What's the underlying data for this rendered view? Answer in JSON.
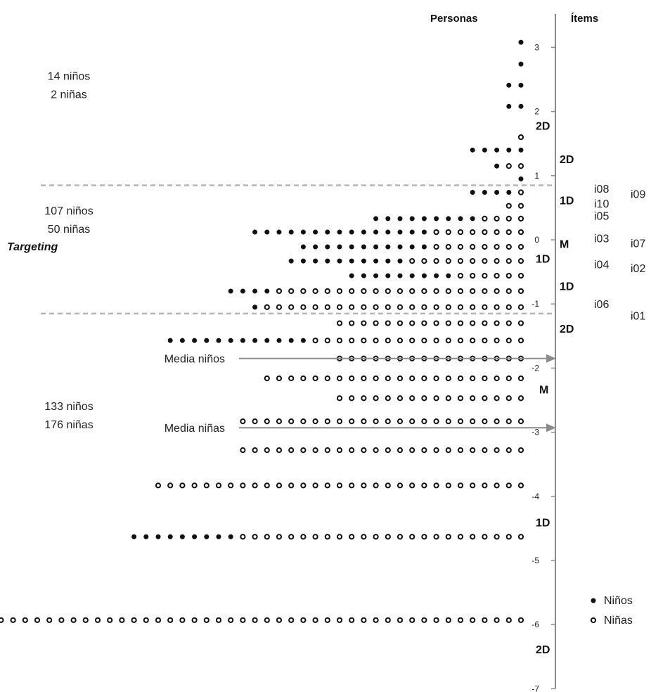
{
  "chart_data": {
    "type": "scatter",
    "title": "",
    "axis": {
      "min": -7,
      "max": 3,
      "ticks": [
        3,
        2,
        1,
        0,
        -1,
        -2,
        -3,
        -4,
        -5,
        -6,
        -7
      ]
    },
    "headers": {
      "persons": "Personas",
      "items": "Ítems"
    },
    "legend": {
      "placement": "bottom-right",
      "entries": [
        {
          "key": "boys",
          "label": "Niños",
          "marker": "filled"
        },
        {
          "key": "girls",
          "label": "Niñas",
          "marker": "open"
        }
      ]
    },
    "rows": [
      {
        "y": 3.08,
        "boys": 1,
        "girls": 0
      },
      {
        "y": 2.74,
        "boys": 1,
        "girls": 0
      },
      {
        "y": 2.41,
        "boys": 2,
        "girls": 0
      },
      {
        "y": 2.08,
        "boys": 2,
        "girls": 0
      },
      {
        "y": 1.6,
        "boys": 0,
        "girls": 1
      },
      {
        "y": 1.4,
        "boys": 5,
        "girls": 0
      },
      {
        "y": 1.15,
        "boys": 1,
        "girls": 2
      },
      {
        "y": 0.95,
        "boys": 1,
        "girls": 0
      },
      {
        "y": 0.74,
        "boys": 4,
        "girls": 1
      },
      {
        "y": 0.53,
        "boys": 0,
        "girls": 2
      },
      {
        "y": 0.33,
        "boys": 9,
        "girls": 4
      },
      {
        "y": 0.12,
        "boys": 15,
        "girls": 8
      },
      {
        "y": -0.11,
        "boys": 11,
        "girls": 8
      },
      {
        "y": -0.33,
        "boys": 10,
        "girls": 10
      },
      {
        "y": -0.56,
        "boys": 9,
        "girls": 6
      },
      {
        "y": -0.8,
        "boys": 4,
        "girls": 21
      },
      {
        "y": -1.05,
        "boys": 1,
        "girls": 22
      },
      {
        "y": -1.3,
        "boys": 0,
        "girls": 16
      },
      {
        "y": -1.57,
        "boys": 12,
        "girls": 18
      },
      {
        "y": -1.85,
        "boys": 0,
        "girls": 16
      },
      {
        "y": -2.16,
        "boys": 0,
        "girls": 22
      },
      {
        "y": -2.47,
        "boys": 0,
        "girls": 16
      },
      {
        "y": -2.83,
        "boys": 0,
        "girls": 24
      },
      {
        "y": -3.28,
        "boys": 0,
        "girls": 24
      },
      {
        "y": -3.83,
        "boys": 0,
        "girls": 31
      },
      {
        "y": -4.63,
        "boys": 9,
        "girls": 24
      },
      {
        "y": -5.93,
        "boys": 0,
        "girls": 58
      }
    ],
    "cutoffs": [
      0.85,
      -1.15
    ],
    "groups": [
      {
        "y_center": 2.45,
        "boys_label": "14 niños",
        "girls_label": "2 niñas"
      },
      {
        "y_center": 0.35,
        "boys_label": "107 niños",
        "girls_label": "50 niñas"
      },
      {
        "y_center": -2.7,
        "boys_label": "133 niños",
        "girls_label": "176 niñas"
      }
    ],
    "targeting_label": "Targeting",
    "means": [
      {
        "label": "Media niños",
        "y": -1.85
      },
      {
        "label": "Media niñas",
        "y": -2.93
      }
    ],
    "bands": [
      {
        "label": "2D",
        "y": 1.78
      },
      {
        "label": "2D",
        "y": 1.26
      },
      {
        "label": "1D",
        "y": 0.62
      },
      {
        "label": "M",
        "y": -0.06
      },
      {
        "label": "1D",
        "y": -0.29
      },
      {
        "label": "1D",
        "y": -0.72
      },
      {
        "label": "2D",
        "y": -1.38
      },
      {
        "label": "M",
        "y": -2.33
      },
      {
        "label": "1D",
        "y": -4.4
      },
      {
        "label": "2D",
        "y": -6.38
      }
    ],
    "items": [
      {
        "label": "i08",
        "y": 0.8,
        "col": 1
      },
      {
        "label": "i09",
        "y": 0.72,
        "col": 2
      },
      {
        "label": "i10",
        "y": 0.57,
        "col": 1
      },
      {
        "label": "i05",
        "y": 0.38,
        "col": 1
      },
      {
        "label": "i03",
        "y": 0.03,
        "col": 1
      },
      {
        "label": "i07",
        "y": -0.05,
        "col": 2
      },
      {
        "label": "i04",
        "y": -0.38,
        "col": 1
      },
      {
        "label": "i02",
        "y": -0.44,
        "col": 2
      },
      {
        "label": "i06",
        "y": -1.0,
        "col": 1
      },
      {
        "label": "i01",
        "y": -1.18,
        "col": 2
      }
    ]
  }
}
